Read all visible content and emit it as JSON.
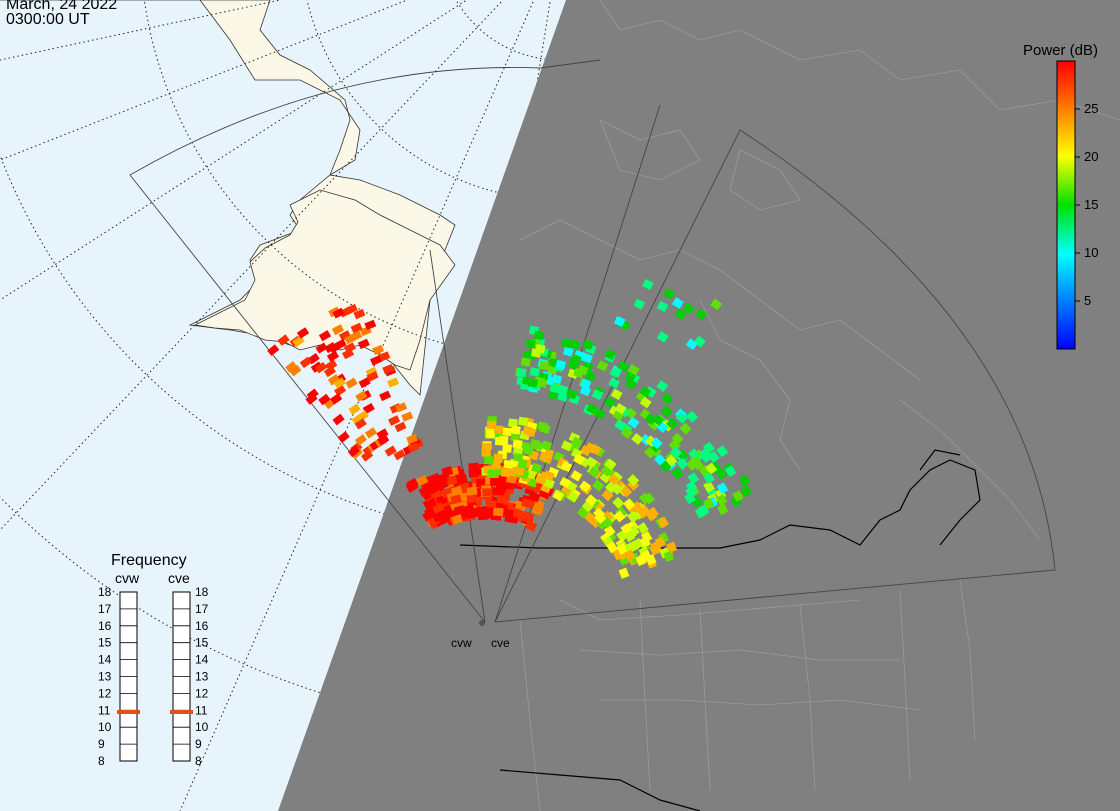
{
  "header": {
    "date": "March, 24 2022",
    "time": "0300:00 UT"
  },
  "colorbar": {
    "title": "Power (dB)",
    "ticks": [
      "25",
      "20",
      "15",
      "10",
      "5"
    ],
    "range": [
      0,
      30
    ],
    "tick_values": [
      25,
      20,
      15,
      10,
      5
    ]
  },
  "frequency_panel": {
    "title": "Frequency",
    "radars": [
      {
        "code": "cvw",
        "frequency_mhz": 10.9
      },
      {
        "code": "cve",
        "frequency_mhz": 10.9
      }
    ],
    "ticks": [
      "18",
      "17",
      "16",
      "15",
      "14",
      "13",
      "12",
      "11",
      "10",
      "9",
      "8"
    ],
    "indicator_color": "#e0501a"
  },
  "stations": [
    {
      "code": "cvw"
    },
    {
      "code": "cve"
    }
  ],
  "colors": {
    "ocean_day": "#e8f4fc",
    "land_day": "#fbf8e8",
    "night": "#808080",
    "night_land_lines": "#9a9a9a"
  }
}
